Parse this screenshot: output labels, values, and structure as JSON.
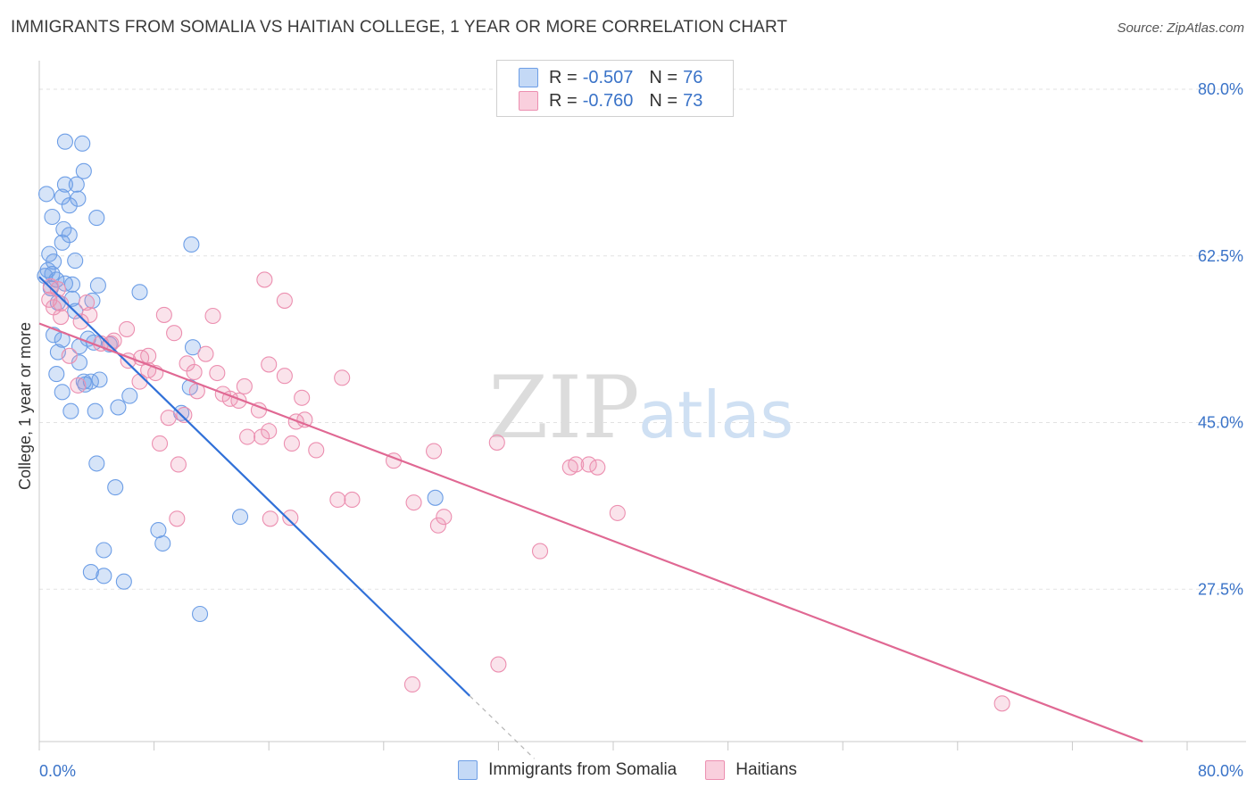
{
  "header": {
    "title": "IMMIGRANTS FROM SOMALIA VS HAITIAN COLLEGE, 1 YEAR OR MORE CORRELATION CHART",
    "source": "Source: ZipAtlas.com"
  },
  "watermark": {
    "zip": "ZIP",
    "atlas": "atlas"
  },
  "legend": {
    "rows": [
      {
        "r_label": "R =",
        "r_value": "-0.507",
        "n_label": "N =",
        "n_value": "76",
        "color": "#6d9ee6"
      },
      {
        "r_label": "R =",
        "r_value": "-0.760",
        "n_label": "N =",
        "n_value": "73",
        "color": "#ec8fb0"
      }
    ]
  },
  "bottom_legend": {
    "items": [
      {
        "label": "Immigrants from Somalia",
        "color": "#6d9ee6"
      },
      {
        "label": "Haitians",
        "color": "#ec8fb0"
      }
    ]
  },
  "chart_data": {
    "type": "scatter",
    "title": "IMMIGRANTS FROM SOMALIA VS HAITIAN COLLEGE, 1 YEAR OR MORE CORRELATION CHART",
    "xlabel": "",
    "ylabel": "College, 1 year or more",
    "xlim": [
      0,
      80
    ],
    "ylim": [
      11.5,
      83
    ],
    "x_tick_labels": [
      "0.0%",
      "80.0%"
    ],
    "y_ticks": [
      27.5,
      45.0,
      62.5,
      80.0
    ],
    "y_tick_labels": [
      "27.5%",
      "45.0%",
      "62.5%",
      "80.0%"
    ],
    "grid": true,
    "series": [
      {
        "name": "Immigrants from Somalia",
        "color": "#6d9ee6",
        "line_color": "#3070d8",
        "trend": {
          "x1": 0,
          "y1": 60.3,
          "x2": 30.0,
          "y2": 16.3,
          "dash_x2": 34.5
        },
        "points": [
          [
            1.8,
            74.5
          ],
          [
            3.0,
            74.3
          ],
          [
            3.1,
            71.4
          ],
          [
            1.8,
            70.0
          ],
          [
            2.6,
            70.0
          ],
          [
            0.5,
            69.0
          ],
          [
            1.6,
            68.7
          ],
          [
            2.7,
            68.5
          ],
          [
            2.1,
            67.8
          ],
          [
            4.0,
            66.5
          ],
          [
            0.9,
            66.6
          ],
          [
            1.7,
            65.3
          ],
          [
            2.1,
            64.7
          ],
          [
            1.6,
            63.9
          ],
          [
            10.6,
            63.7
          ],
          [
            0.7,
            62.7
          ],
          [
            2.5,
            62.0
          ],
          [
            1.0,
            61.9
          ],
          [
            0.6,
            61.0
          ],
          [
            0.9,
            60.6
          ],
          [
            1.2,
            60.0
          ],
          [
            0.4,
            60.4
          ],
          [
            1.8,
            59.6
          ],
          [
            2.3,
            59.5
          ],
          [
            4.1,
            59.4
          ],
          [
            0.8,
            59.1
          ],
          [
            7.0,
            58.7
          ],
          [
            2.3,
            58.0
          ],
          [
            1.3,
            57.6
          ],
          [
            3.7,
            57.8
          ],
          [
            2.5,
            56.7
          ],
          [
            1.0,
            54.2
          ],
          [
            1.6,
            53.7
          ],
          [
            3.4,
            53.8
          ],
          [
            4.9,
            53.2
          ],
          [
            2.8,
            53.0
          ],
          [
            10.7,
            52.9
          ],
          [
            3.8,
            53.4
          ],
          [
            1.3,
            52.4
          ],
          [
            2.8,
            51.3
          ],
          [
            1.2,
            50.1
          ],
          [
            3.1,
            49.3
          ],
          [
            4.2,
            49.5
          ],
          [
            3.6,
            49.3
          ],
          [
            3.2,
            49.0
          ],
          [
            10.5,
            48.7
          ],
          [
            1.6,
            48.2
          ],
          [
            6.3,
            47.8
          ],
          [
            5.5,
            46.6
          ],
          [
            2.2,
            46.2
          ],
          [
            3.9,
            46.2
          ],
          [
            9.9,
            46.0
          ],
          [
            4.0,
            40.7
          ],
          [
            5.3,
            38.2
          ],
          [
            14.0,
            35.1
          ],
          [
            27.6,
            37.1
          ],
          [
            8.3,
            33.7
          ],
          [
            8.6,
            32.3
          ],
          [
            4.5,
            31.6
          ],
          [
            3.6,
            29.3
          ],
          [
            4.5,
            28.9
          ],
          [
            5.9,
            28.3
          ],
          [
            11.2,
            24.9
          ]
        ]
      },
      {
        "name": "Haitians",
        "color": "#ec8fb0",
        "line_color": "#e06893",
        "trend": {
          "x1": 0,
          "y1": 55.4,
          "x2": 76.9,
          "y2": 11.5
        },
        "points": [
          [
            0.8,
            59.3
          ],
          [
            1.3,
            59.0
          ],
          [
            0.7,
            57.9
          ],
          [
            1.0,
            57.1
          ],
          [
            1.5,
            57.5
          ],
          [
            3.3,
            57.6
          ],
          [
            3.5,
            56.3
          ],
          [
            1.5,
            56.1
          ],
          [
            8.7,
            56.3
          ],
          [
            12.1,
            56.2
          ],
          [
            2.9,
            55.6
          ],
          [
            6.1,
            54.8
          ],
          [
            9.4,
            54.4
          ],
          [
            5.2,
            53.6
          ],
          [
            4.3,
            53.3
          ],
          [
            5.0,
            53.3
          ],
          [
            2.1,
            52.0
          ],
          [
            7.1,
            51.8
          ],
          [
            7.6,
            52.0
          ],
          [
            11.6,
            52.2
          ],
          [
            6.2,
            51.5
          ],
          [
            10.3,
            51.2
          ],
          [
            16.0,
            51.1
          ],
          [
            7.6,
            50.5
          ],
          [
            8.1,
            50.2
          ],
          [
            10.8,
            50.3
          ],
          [
            12.4,
            50.2
          ],
          [
            17.1,
            49.9
          ],
          [
            21.1,
            49.7
          ],
          [
            7.0,
            49.3
          ],
          [
            2.7,
            48.9
          ],
          [
            11.0,
            48.3
          ],
          [
            12.8,
            48.0
          ],
          [
            14.3,
            48.8
          ],
          [
            13.3,
            47.5
          ],
          [
            13.9,
            47.3
          ],
          [
            18.3,
            47.6
          ],
          [
            15.3,
            46.3
          ],
          [
            10.1,
            45.8
          ],
          [
            9.0,
            45.5
          ],
          [
            17.9,
            45.1
          ],
          [
            18.5,
            45.3
          ],
          [
            16.0,
            44.1
          ],
          [
            14.5,
            43.5
          ],
          [
            15.5,
            43.5
          ],
          [
            8.4,
            42.8
          ],
          [
            17.6,
            42.8
          ],
          [
            19.3,
            42.1
          ],
          [
            27.5,
            42.0
          ],
          [
            24.7,
            41.0
          ],
          [
            9.7,
            40.6
          ],
          [
            31.9,
            42.9
          ],
          [
            37.4,
            40.6
          ],
          [
            38.3,
            40.6
          ],
          [
            37.0,
            40.3
          ],
          [
            38.9,
            40.3
          ],
          [
            20.8,
            36.9
          ],
          [
            21.8,
            36.9
          ],
          [
            26.1,
            36.6
          ],
          [
            40.3,
            35.5
          ],
          [
            9.6,
            34.9
          ],
          [
            16.1,
            34.9
          ],
          [
            17.5,
            35.0
          ],
          [
            28.2,
            35.1
          ],
          [
            27.8,
            34.2
          ],
          [
            34.9,
            31.5
          ],
          [
            15.7,
            60.0
          ],
          [
            17.1,
            57.8
          ],
          [
            32.0,
            19.6
          ],
          [
            26.0,
            17.5
          ],
          [
            67.1,
            15.5
          ]
        ]
      }
    ]
  }
}
